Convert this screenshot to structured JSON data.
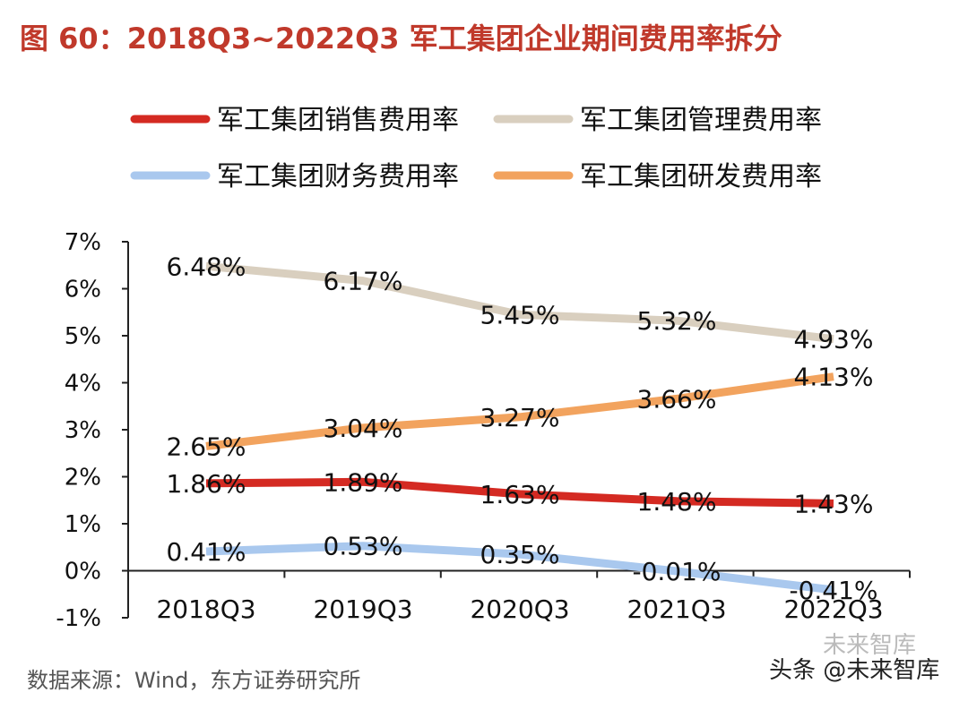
{
  "header": {
    "figure_label": "图 60：",
    "title_range": "2018Q3~2022Q3",
    "title_text": "军工集团企业期间费用率拆分"
  },
  "footer": {
    "source": "数据来源：Wind，东方证券研究所",
    "watermark": "头条 @未来智库",
    "watermark_logo": "未来智库"
  },
  "chart_data": {
    "type": "line",
    "title": "2018Q3~2022Q3 军工集团企业期间费用率拆分",
    "categories": [
      "2018Q3",
      "2019Q3",
      "2020Q3",
      "2021Q3",
      "2022Q3"
    ],
    "ylim": [
      -1,
      7
    ],
    "yticks": [
      -1,
      0,
      1,
      2,
      3,
      4,
      5,
      6,
      7
    ],
    "ytick_labels": [
      "-1%",
      "0%",
      "1%",
      "2%",
      "3%",
      "4%",
      "5%",
      "6%",
      "7%"
    ],
    "xlabel": "",
    "ylabel": "",
    "grid": false,
    "legend_position": "top",
    "series": [
      {
        "name": "军工集团销售费用率",
        "color": "#d42a22",
        "values": [
          1.86,
          1.89,
          1.63,
          1.48,
          1.43
        ],
        "labels": [
          "1.86%",
          "1.89%",
          "1.63%",
          "1.48%",
          "1.43%"
        ]
      },
      {
        "name": "军工集团管理费用率",
        "color": "#d9cfbf",
        "values": [
          6.48,
          6.17,
          5.45,
          5.32,
          4.93
        ],
        "labels": [
          "6.48%",
          "6.17%",
          "5.45%",
          "5.32%",
          "4.93%"
        ]
      },
      {
        "name": "军工集团财务费用率",
        "color": "#a9c8ee",
        "values": [
          0.41,
          0.53,
          0.35,
          -0.01,
          -0.41
        ],
        "labels": [
          "0.41%",
          "0.53%",
          "0.35%",
          "-0.01%",
          "-0.41%"
        ]
      },
      {
        "name": "军工集团研发费用率",
        "color": "#f2a35e",
        "values": [
          2.65,
          3.04,
          3.27,
          3.66,
          4.13
        ],
        "labels": [
          "2.65%",
          "3.04%",
          "3.27%",
          "3.66%",
          "4.13%"
        ]
      }
    ]
  }
}
